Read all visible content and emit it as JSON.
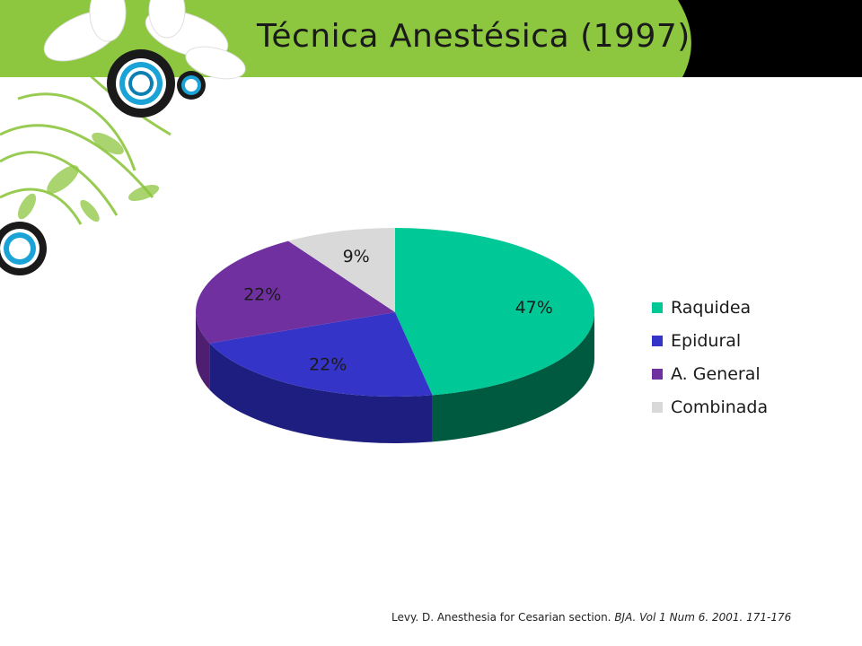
{
  "slide": {
    "title": "Técnica Anestésica (1997)",
    "citation": {
      "plain": "Levy. D. Anesthesia  for Cesarian section. ",
      "italic": "BJA. Vol 1 Num 6. 2001. 171-176"
    }
  },
  "colors": {
    "title_band": "#8dc63f",
    "black_band": "#000000"
  },
  "chart_data": {
    "type": "pie",
    "style": "3d",
    "title": "",
    "legend_position": "right",
    "categories": [
      "Raquidea",
      "Epidural",
      "A. General",
      "Combinada"
    ],
    "values": [
      47,
      22,
      22,
      9
    ],
    "data_labels": [
      "47%",
      "22%",
      "22%",
      "9%"
    ],
    "unit": "%",
    "colors": [
      "#00c896",
      "#3434c8",
      "#7030a0",
      "#d9d9d9"
    ],
    "side_colors": [
      "#005a40",
      "#1e1e80",
      "#4e1e70",
      "#a0a0a0"
    ]
  }
}
